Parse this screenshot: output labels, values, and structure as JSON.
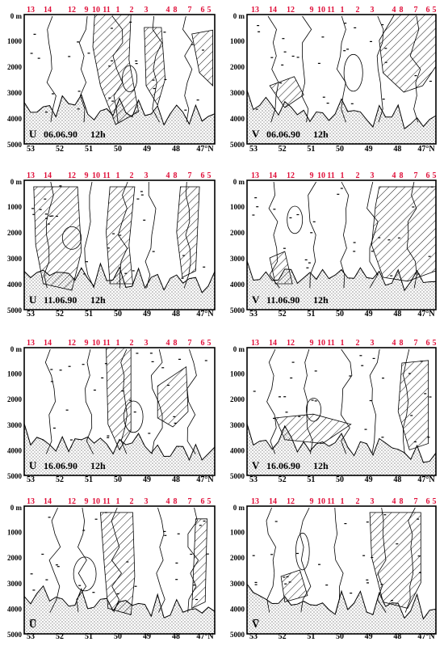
{
  "figure": {
    "station_labels": [
      "13",
      "14",
      "12",
      "9",
      "10",
      "11",
      "1",
      "2",
      "3",
      "4",
      "8",
      "7",
      "6",
      "5"
    ],
    "depth_axis": [
      "0 m",
      "1000",
      "2000",
      "3000",
      "4000",
      "5000"
    ],
    "lat_axis": [
      "53",
      "52",
      "51",
      "50",
      "49",
      "48",
      "47°N"
    ],
    "colors": {
      "station_label": "#e0103a",
      "ink": "#000000",
      "hatch": "#000000"
    },
    "panels": [
      {
        "variable": "U",
        "date": "06.06.90",
        "time": "12h"
      },
      {
        "variable": "V",
        "date": "06.06.90",
        "time": "12h"
      },
      {
        "variable": "U",
        "date": "11.06.90",
        "time": "12h"
      },
      {
        "variable": "V",
        "date": "11.06.90",
        "time": "12h"
      },
      {
        "variable": "U",
        "date": "16.06.90",
        "time": "12h"
      },
      {
        "variable": "V",
        "date": "16.06.90",
        "time": "12h"
      },
      {
        "variable": "U̅",
        "date": "",
        "time": ""
      },
      {
        "variable": "V̅",
        "date": "",
        "time": ""
      }
    ]
  }
}
